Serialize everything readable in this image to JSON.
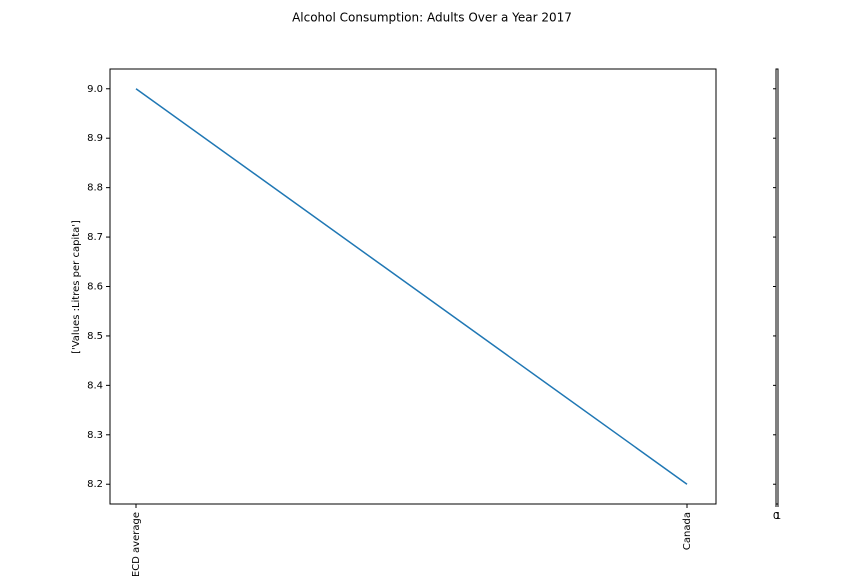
{
  "chart_data": [
    {
      "type": "line",
      "title": "Alcohol Consumption: Adults Over a Year 2017",
      "ylabel": "['Values :Litres per capita']",
      "categories": [
        "OECD average",
        "Canada"
      ],
      "series": [
        {
          "name": "Values",
          "color": "#1f77b4",
          "values": [
            9.0,
            8.2
          ]
        }
      ],
      "ylim": [
        8.16,
        9.04
      ],
      "yticks": [
        {
          "value": 8.2,
          "label": "8.2"
        },
        {
          "value": 8.3,
          "label": "8.3"
        },
        {
          "value": 8.4,
          "label": "8.4"
        },
        {
          "value": 8.5,
          "label": "8.5"
        },
        {
          "value": 8.6,
          "label": "8.6"
        },
        {
          "value": 8.7,
          "label": "8.7"
        },
        {
          "value": 8.8,
          "label": "8.8"
        },
        {
          "value": 8.9,
          "label": "8.9"
        },
        {
          "value": 9.0,
          "label": "9.0"
        }
      ]
    },
    {
      "type": "empty",
      "xlim": [
        0,
        1
      ],
      "xticks": [
        0,
        1
      ]
    }
  ]
}
